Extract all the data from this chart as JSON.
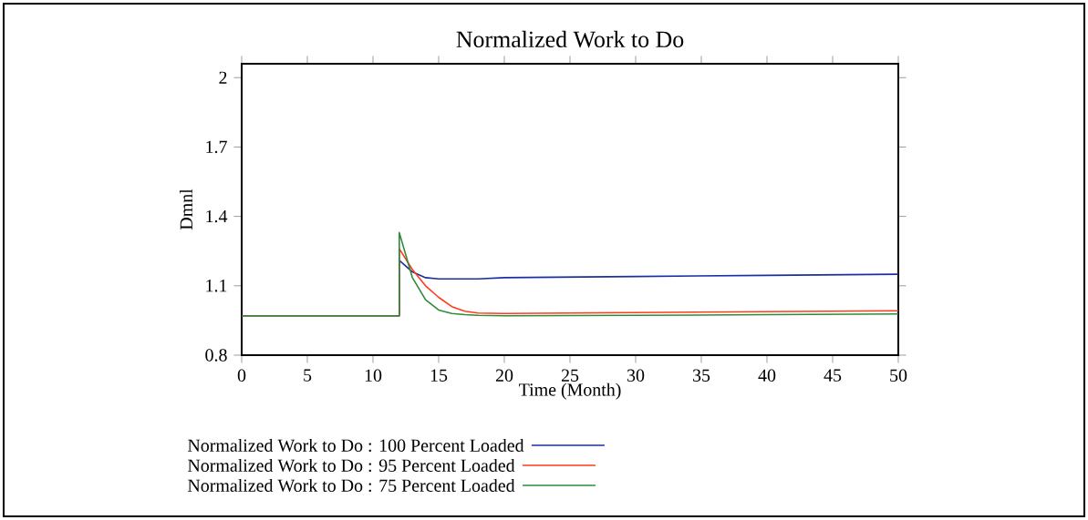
{
  "chart_data": {
    "type": "line",
    "title": "Normalized Work to Do",
    "xlabel": "Time (Month)",
    "ylabel": "Dmnl",
    "x": [
      0,
      12,
      12,
      13,
      14,
      15,
      16,
      17,
      18,
      20,
      30,
      40,
      50
    ],
    "series": [
      {
        "name": "Normalized Work to Do : 100 Percent Loaded",
        "color": "#1a2fa0",
        "values": [
          0.97,
          0.97,
          1.21,
          1.16,
          1.135,
          1.13,
          1.13,
          1.13,
          1.13,
          1.135,
          1.14,
          1.145,
          1.15
        ]
      },
      {
        "name": "Normalized Work to Do : 95 Percent Loaded",
        "color": "#ff3b1a",
        "values": [
          0.97,
          0.97,
          1.26,
          1.17,
          1.1,
          1.05,
          1.01,
          0.99,
          0.982,
          0.98,
          0.984,
          0.988,
          0.992
        ]
      },
      {
        "name": "Normalized Work to Do : 75 Percent Loaded",
        "color": "#2e8b3a",
        "values": [
          0.97,
          0.97,
          1.33,
          1.135,
          1.04,
          0.995,
          0.98,
          0.975,
          0.972,
          0.97,
          0.972,
          0.975,
          0.978
        ]
      }
    ],
    "xlim": [
      0,
      50
    ],
    "ylim": [
      0.8,
      2.06
    ],
    "xticks": [
      0,
      5,
      10,
      15,
      20,
      25,
      30,
      35,
      40,
      45,
      50
    ],
    "yticks": [
      0.8,
      1.1,
      1.4,
      1.7,
      2
    ],
    "legend": "bottom"
  }
}
